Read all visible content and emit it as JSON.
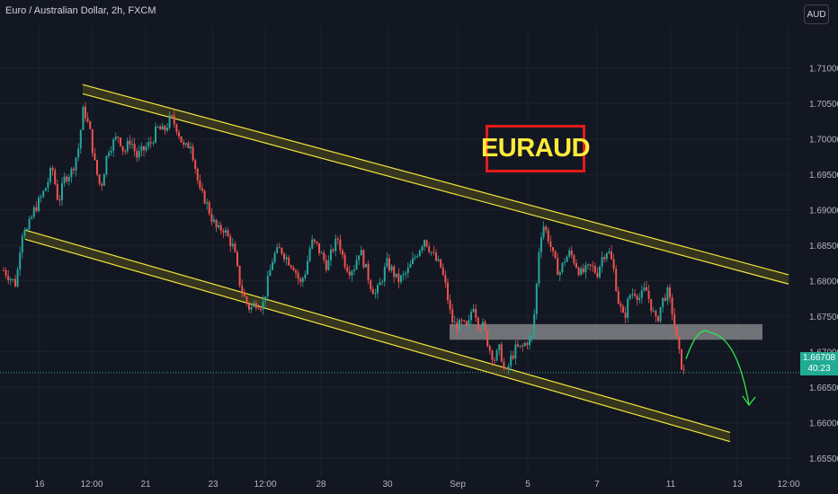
{
  "header": {
    "title": "Euro / Australian Dollar, 2h, FXCM",
    "currency": "AUD"
  },
  "price_label": {
    "value": "1.66708",
    "countdown": "40:23"
  },
  "colors": {
    "up": "#26a69a",
    "down": "#ef5350",
    "channel": "#f0e63c",
    "zone": "#9a9a9a",
    "arrow": "#2ee84a"
  },
  "chart_data": {
    "type": "candlestick",
    "symbol": "EURAUD",
    "annotation": "EURAUD",
    "ylim": [
      1.6525,
      1.714
    ],
    "y_ticks": [
      "1.71000",
      "1.70500",
      "1.70000",
      "1.69500",
      "1.69000",
      "1.68500",
      "1.68000",
      "1.67500",
      "1.67000",
      "1.66500",
      "1.66000",
      "1.65500"
    ],
    "x_ticks": [
      {
        "label": "16",
        "t": 44
      },
      {
        "label": "12:00",
        "t": 102
      },
      {
        "label": "21",
        "t": 162
      },
      {
        "label": "23",
        "t": 237
      },
      {
        "label": "12:00",
        "t": 295
      },
      {
        "label": "28",
        "t": 357
      },
      {
        "label": "30",
        "t": 431
      },
      {
        "label": "Sep",
        "t": 509
      },
      {
        "label": "5",
        "t": 587
      },
      {
        "label": "7",
        "t": 664
      },
      {
        "label": "11",
        "t": 746
      },
      {
        "label": "13",
        "t": 820
      },
      {
        "label": "12:00",
        "t": 877
      }
    ],
    "current_price": 1.66708,
    "path": [
      [
        4,
        1.6815
      ],
      [
        18,
        1.6795
      ],
      [
        22,
        1.6845
      ],
      [
        26,
        1.688
      ],
      [
        30,
        1.687
      ],
      [
        38,
        1.69
      ],
      [
        45,
        1.6915
      ],
      [
        52,
        1.6935
      ],
      [
        58,
        1.696
      ],
      [
        65,
        1.691
      ],
      [
        72,
        1.6945
      ],
      [
        80,
        1.6955
      ],
      [
        87,
        1.6985
      ],
      [
        93,
        1.7045
      ],
      [
        100,
        1.701
      ],
      [
        106,
        1.696
      ],
      [
        112,
        1.693
      ],
      [
        120,
        1.6985
      ],
      [
        126,
        1.6995
      ],
      [
        132,
        1.7005
      ],
      [
        138,
        1.698
      ],
      [
        145,
        1.7
      ],
      [
        152,
        1.6975
      ],
      [
        160,
        1.6985
      ],
      [
        168,
        1.6995
      ],
      [
        175,
        1.7015
      ],
      [
        182,
        1.701
      ],
      [
        190,
        1.703
      ],
      [
        197,
        1.7015
      ],
      [
        205,
        1.6985
      ],
      [
        212,
        1.6995
      ],
      [
        218,
        1.6955
      ],
      [
        222,
        1.6925
      ],
      [
        228,
        1.6915
      ],
      [
        235,
        1.689
      ],
      [
        242,
        1.687
      ],
      [
        248,
        1.6875
      ],
      [
        254,
        1.686
      ],
      [
        260,
        1.6845
      ],
      [
        266,
        1.68
      ],
      [
        272,
        1.6775
      ],
      [
        278,
        1.676
      ],
      [
        285,
        1.677
      ],
      [
        292,
        1.6765
      ],
      [
        298,
        1.68
      ],
      [
        304,
        1.6835
      ],
      [
        312,
        1.6845
      ],
      [
        320,
        1.683
      ],
      [
        327,
        1.682
      ],
      [
        334,
        1.6795
      ],
      [
        340,
        1.6815
      ],
      [
        346,
        1.6855
      ],
      [
        352,
        1.685
      ],
      [
        358,
        1.6835
      ],
      [
        364,
        1.682
      ],
      [
        370,
        1.6845
      ],
      [
        376,
        1.686
      ],
      [
        382,
        1.683
      ],
      [
        388,
        1.6815
      ],
      [
        394,
        1.682
      ],
      [
        400,
        1.6845
      ],
      [
        406,
        1.682
      ],
      [
        412,
        1.6795
      ],
      [
        418,
        1.678
      ],
      [
        424,
        1.68
      ],
      [
        430,
        1.6825
      ],
      [
        436,
        1.6815
      ],
      [
        442,
        1.68
      ],
      [
        448,
        1.6805
      ],
      [
        454,
        1.6815
      ],
      [
        460,
        1.683
      ],
      [
        466,
        1.6845
      ],
      [
        472,
        1.686
      ],
      [
        478,
        1.6845
      ],
      [
        484,
        1.683
      ],
      [
        490,
        1.682
      ],
      [
        496,
        1.679
      ],
      [
        502,
        1.6745
      ],
      [
        508,
        1.6735
      ],
      [
        514,
        1.674
      ],
      [
        520,
        1.673
      ],
      [
        526,
        1.677
      ],
      [
        532,
        1.674
      ],
      [
        538,
        1.6735
      ],
      [
        544,
        1.6705
      ],
      [
        550,
        1.669
      ],
      [
        556,
        1.6705
      ],
      [
        562,
        1.6665
      ],
      [
        568,
        1.669
      ],
      [
        574,
        1.6705
      ],
      [
        580,
        1.6705
      ],
      [
        586,
        1.6715
      ],
      [
        592,
        1.672
      ],
      [
        596,
        1.678
      ],
      [
        600,
        1.6855
      ],
      [
        604,
        1.688
      ],
      [
        610,
        1.686
      ],
      [
        616,
        1.683
      ],
      [
        622,
        1.681
      ],
      [
        628,
        1.683
      ],
      [
        634,
        1.684
      ],
      [
        640,
        1.6825
      ],
      [
        646,
        1.681
      ],
      [
        652,
        1.6815
      ],
      [
        658,
        1.682
      ],
      [
        664,
        1.681
      ],
      [
        670,
        1.6835
      ],
      [
        676,
        1.6845
      ],
      [
        682,
        1.682
      ],
      [
        688,
        1.677
      ],
      [
        694,
        1.6745
      ],
      [
        700,
        1.678
      ],
      [
        706,
        1.6785
      ],
      [
        712,
        1.6775
      ],
      [
        718,
        1.679
      ],
      [
        724,
        1.6765
      ],
      [
        730,
        1.674
      ],
      [
        736,
        1.677
      ],
      [
        742,
        1.6785
      ],
      [
        748,
        1.6755
      ],
      [
        754,
        1.6705
      ],
      [
        760,
        1.667
      ],
      [
        762,
        1.66708
      ]
    ],
    "channel_upper": {
      "from": [
        92,
        1.707
      ],
      "to": [
        877,
        1.6802
      ],
      "width": 0.0013
    },
    "channel_lower": {
      "from": [
        28,
        1.6865
      ],
      "to": [
        812,
        1.658
      ],
      "width": 0.0013
    },
    "zone": {
      "t0": 500,
      "t1": 848,
      "y0": 1.6717,
      "y1": 1.6739
    },
    "projection": {
      "start": [
        763,
        1.669
      ],
      "peak": [
        790,
        1.6727
      ],
      "end": [
        833,
        1.6625
      ]
    }
  }
}
